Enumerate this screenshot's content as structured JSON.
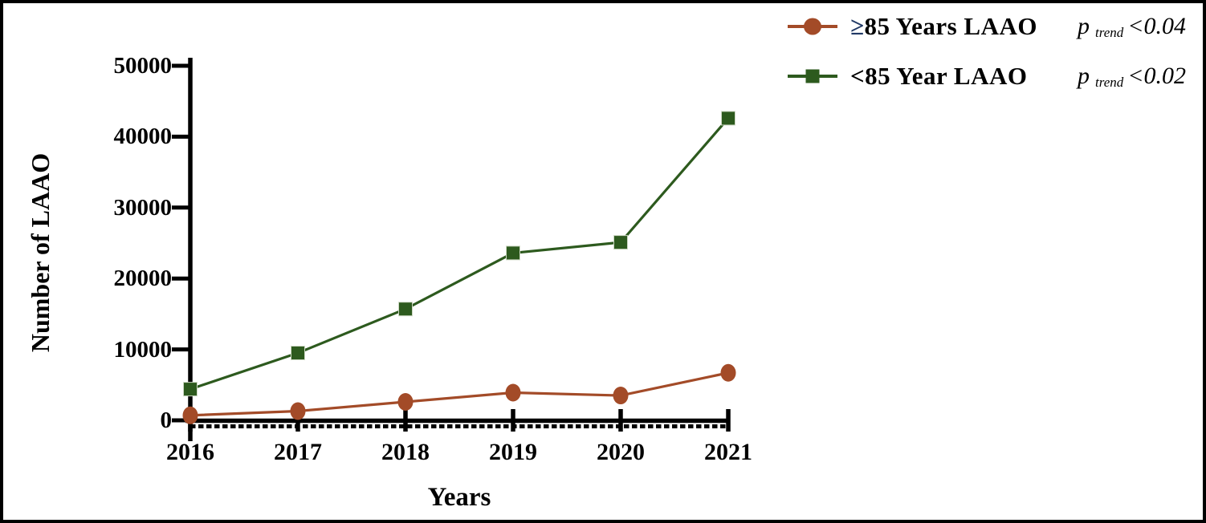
{
  "figure": {
    "background": "#ffffff",
    "border_color": "#000000"
  },
  "chart_data": {
    "type": "line",
    "title": "",
    "xlabel": "Years",
    "ylabel": "Number of LAAO",
    "categories": [
      "2016",
      "2017",
      "2018",
      "2019",
      "2020",
      "2021"
    ],
    "ylim": [
      0,
      50000
    ],
    "ytick_step": 10000,
    "ytick_labels": [
      "0",
      "10000",
      "20000",
      "30000",
      "40000",
      "50000"
    ],
    "grid": false,
    "legend_position": "top-right",
    "axis_color": "#000000",
    "series": [
      {
        "name": "≥85 Years LAAO",
        "marker": "circle",
        "color": "#A34B28",
        "p_trend": "<0.04",
        "values": [
          700,
          1300,
          2600,
          3900,
          3500,
          6700
        ]
      },
      {
        "name": "<85 Year LAAO",
        "marker": "square",
        "color": "#2D5A1E",
        "p_trend": "<0.02",
        "values": [
          4400,
          9500,
          15700,
          23600,
          25100,
          42600
        ]
      }
    ]
  },
  "legend": {
    "items": [
      {
        "prefix": "≥",
        "prefix_color": "#203864",
        "label": "85 Years LAAO",
        "p_label": "p",
        "p_sub": "trend",
        "p_value": "<0.04"
      },
      {
        "prefix": "<",
        "prefix_color": "#000000",
        "label": "85 Year LAAO",
        "p_label": "p",
        "p_sub": "trend",
        "p_value": "<0.02"
      }
    ]
  }
}
